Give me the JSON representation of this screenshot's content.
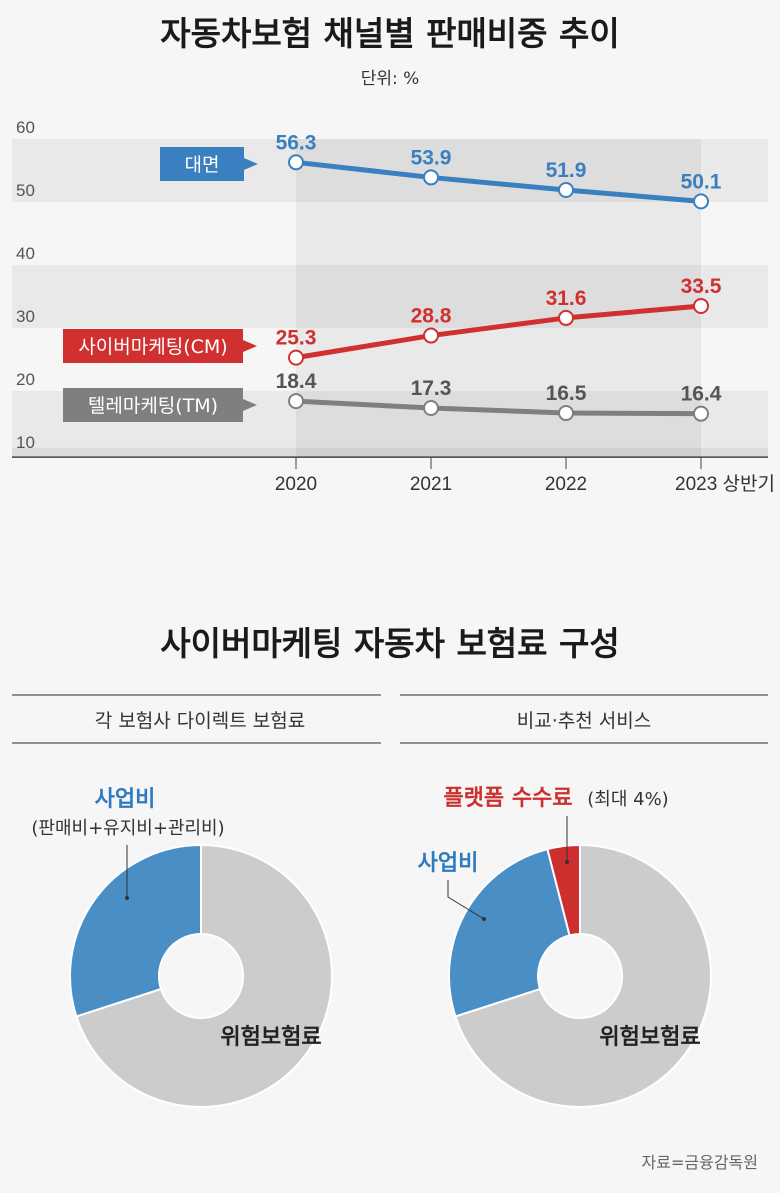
{
  "chart_data": [
    {
      "type": "line",
      "title": "자동차보험 채널별 판매비중 추이",
      "subtitle": "단위: %",
      "categories": [
        "2020",
        "2021",
        "2022",
        "2023 상반기"
      ],
      "yticks": [
        "60",
        "50",
        "40",
        "30",
        "20",
        "10"
      ],
      "ylim": [
        9.5,
        60
      ],
      "grid": "alternating bands",
      "series": [
        {
          "name": "대면",
          "color": "#3a80c0",
          "values": [
            56.3,
            53.9,
            51.9,
            50.1
          ],
          "labels": [
            "56.3",
            "53.9",
            "51.9",
            "50.1"
          ]
        },
        {
          "name": "사이버마케팅(CM)",
          "color": "#d0302f",
          "values": [
            25.3,
            28.8,
            31.6,
            33.5
          ],
          "labels": [
            "25.3",
            "28.8",
            "31.6",
            "33.5"
          ]
        },
        {
          "name": "텔레마케팅(TM)",
          "color": "#7f7f7f",
          "values": [
            18.4,
            17.3,
            16.5,
            16.4
          ],
          "labels": [
            "18.4",
            "17.3",
            "16.5",
            "16.4"
          ]
        }
      ]
    },
    {
      "type": "pie",
      "title": "사이버마케팅 자동차 보험료 구성",
      "panels": [
        {
          "heading": "각 보험사 다이렉트 보험료",
          "slices": [
            {
              "name": "위험보험료",
              "share": 70,
              "color": "#cccccc"
            },
            {
              "name": "사업비",
              "note": "(판매비+유지비+관리비)",
              "share": 30,
              "color": "#4a8ec6"
            }
          ]
        },
        {
          "heading": "비교·추천 서비스",
          "slices": [
            {
              "name": "위험보험료",
              "share": 70,
              "color": "#cccccc"
            },
            {
              "name": "사업비",
              "share": 26,
              "color": "#4a8ec6"
            },
            {
              "name": "플랫폼 수수료",
              "note": "(최대 4%)",
              "share": 4,
              "color": "#cc2f2e"
            }
          ]
        }
      ]
    }
  ],
  "source": "자료=금융감독원"
}
